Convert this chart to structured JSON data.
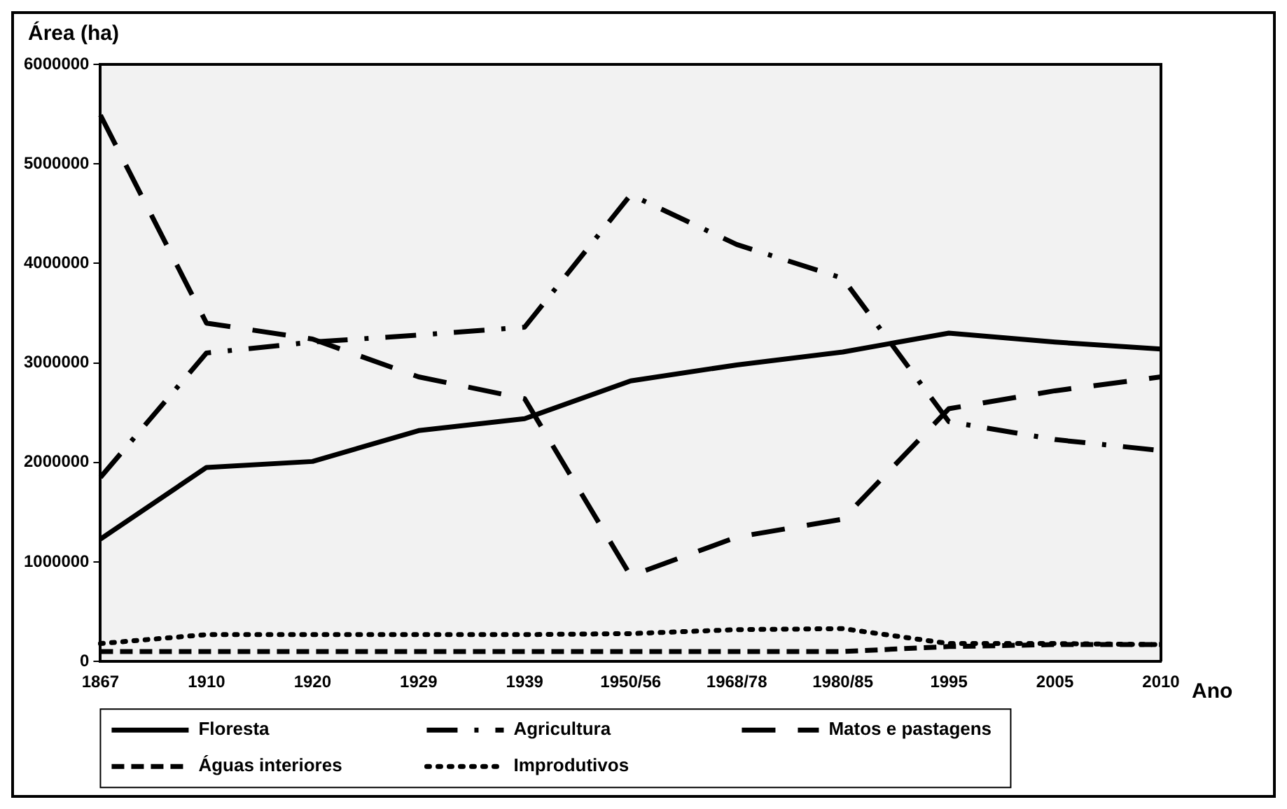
{
  "chart_data": {
    "type": "line",
    "ylabel": "Área (ha)",
    "xlabel": "Ano",
    "categories": [
      "1867",
      "1910",
      "1920",
      "1929",
      "1939",
      "1950/56",
      "1968/78",
      "1980/85",
      "1995",
      "2005",
      "2010"
    ],
    "ylim": [
      0,
      6000000
    ],
    "yticks": [
      0,
      1000000,
      2000000,
      3000000,
      4000000,
      5000000,
      6000000
    ],
    "grid": false,
    "legend": "bottom",
    "marker": "none",
    "series": [
      {
        "name": "Floresta",
        "color": "#000000",
        "line_style": "solid",
        "values": [
          1230000,
          1950000,
          2010000,
          2320000,
          2440000,
          2820000,
          2980000,
          3110000,
          3300000,
          3210000,
          3140000
        ]
      },
      {
        "name": "Agricultura",
        "color": "#000000",
        "line_style": "dashed",
        "values": [
          1850000,
          3100000,
          3210000,
          3280000,
          3360000,
          4690000,
          4190000,
          3850000,
          2410000,
          2230000,
          2120000
        ]
      },
      {
        "name": "Matos e pastagens",
        "color": "#000000",
        "line_style": "dashed",
        "values": [
          5490000,
          3400000,
          3240000,
          2860000,
          2640000,
          860000,
          1250000,
          1430000,
          2540000,
          2720000,
          2860000
        ]
      },
      {
        "name": "Águas interiores",
        "color": "#000000",
        "line_style": "dashed",
        "values": [
          100000,
          100000,
          100000,
          100000,
          100000,
          100000,
          100000,
          100000,
          150000,
          170000,
          170000
        ]
      },
      {
        "name": "Improdutivos",
        "color": "#000000",
        "line_style": "dotted",
        "values": [
          180000,
          270000,
          270000,
          270000,
          270000,
          280000,
          320000,
          330000,
          180000,
          180000,
          170000
        ]
      }
    ]
  }
}
